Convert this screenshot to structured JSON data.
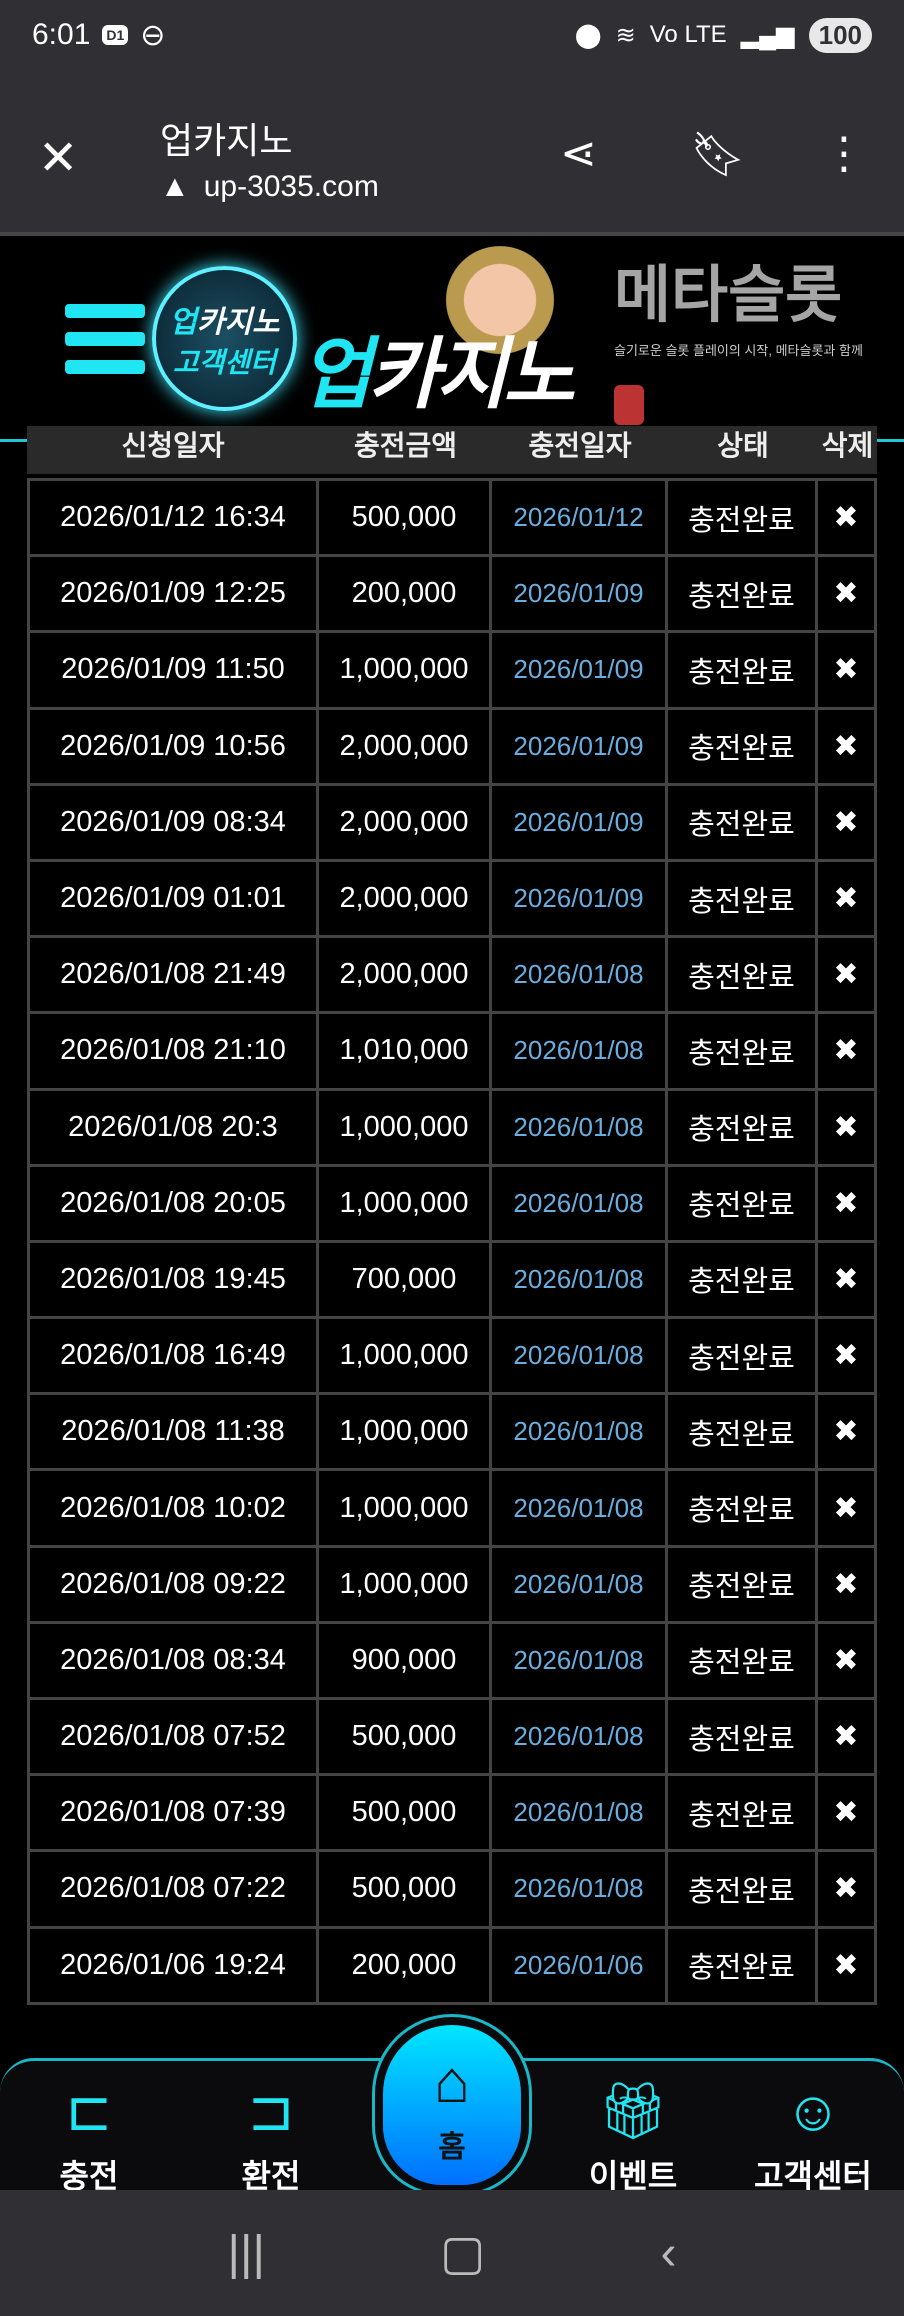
{
  "status_bar": {
    "time": "6:01",
    "badge": "D1",
    "network": "Vo LTE",
    "battery": "100"
  },
  "browser": {
    "title": "업카지노",
    "url": "up-3035.com",
    "icons": [
      "close-icon",
      "warning-icon",
      "share-icon",
      "bookmark-icon",
      "more-icon"
    ]
  },
  "header": {
    "logo_text_accent": "업",
    "logo_text": "카지노"
  },
  "table": {
    "columns": [
      "신청일자",
      "충전금액",
      "충전일자",
      "상태",
      "삭제"
    ],
    "rows": [
      {
        "requested": "2026/01/12 16:34",
        "amount": "500,000",
        "charged": "2026/01/12",
        "status": "충전완료",
        "delete": "✖"
      },
      {
        "requested": "2026/01/09 12:25",
        "amount": "200,000",
        "charged": "2026/01/09",
        "status": "충전완료",
        "delete": "✖"
      },
      {
        "requested": "2026/01/09 11:50",
        "amount": "1,000,000",
        "charged": "2026/01/09",
        "status": "충전완료",
        "delete": "✖"
      },
      {
        "requested": "2026/01/09 10:56",
        "amount": "2,000,000",
        "charged": "2026/01/09",
        "status": "충전완료",
        "delete": "✖"
      },
      {
        "requested": "2026/01/09 08:34",
        "amount": "2,000,000",
        "charged": "2026/01/09",
        "status": "충전완료",
        "delete": "✖"
      },
      {
        "requested": "2026/01/09 01:01",
        "amount": "2,000,000",
        "charged": "2026/01/09",
        "status": "충전완료",
        "delete": "✖"
      },
      {
        "requested": "2026/01/08 21:49",
        "amount": "2,000,000",
        "charged": "2026/01/08",
        "status": "충전완료",
        "delete": "✖"
      },
      {
        "requested": "2026/01/08 21:10",
        "amount": "1,010,000",
        "charged": "2026/01/08",
        "status": "충전완료",
        "delete": "✖"
      },
      {
        "requested": "2026/01/08 20:3",
        "amount": "1,000,000",
        "charged": "2026/01/08",
        "status": "충전완료",
        "delete": "✖"
      },
      {
        "requested": "2026/01/08 20:05",
        "amount": "1,000,000",
        "charged": "2026/01/08",
        "status": "충전완료",
        "delete": "✖"
      },
      {
        "requested": "2026/01/08 19:45",
        "amount": "700,000",
        "charged": "2026/01/08",
        "status": "충전완료",
        "delete": "✖"
      },
      {
        "requested": "2026/01/08 16:49",
        "amount": "1,000,000",
        "charged": "2026/01/08",
        "status": "충전완료",
        "delete": "✖"
      },
      {
        "requested": "2026/01/08 11:38",
        "amount": "1,000,000",
        "charged": "2026/01/08",
        "status": "충전완료",
        "delete": "✖"
      },
      {
        "requested": "2026/01/08 10:02",
        "amount": "1,000,000",
        "charged": "2026/01/08",
        "status": "충전완료",
        "delete": "✖"
      },
      {
        "requested": "2026/01/08 09:22",
        "amount": "1,000,000",
        "charged": "2026/01/08",
        "status": "충전완료",
        "delete": "✖"
      },
      {
        "requested": "2026/01/08 08:34",
        "amount": "900,000",
        "charged": "2026/01/08",
        "status": "충전완료",
        "delete": "✖"
      },
      {
        "requested": "2026/01/08 07:52",
        "amount": "500,000",
        "charged": "2026/01/08",
        "status": "충전완료",
        "delete": "✖"
      },
      {
        "requested": "2026/01/08 07:39",
        "amount": "500,000",
        "charged": "2026/01/08",
        "status": "충전완료",
        "delete": "✖"
      },
      {
        "requested": "2026/01/08 07:22",
        "amount": "500,000",
        "charged": "2026/01/08",
        "status": "충전완료",
        "delete": "✖"
      },
      {
        "requested": "2026/01/06 19:24",
        "amount": "200,000",
        "charged": "2026/01/06",
        "status": "충전완료",
        "delete": "✖"
      }
    ]
  },
  "watermark": {
    "title": "메타슬롯",
    "tagline": "슬기로운 슬롯 플레이의 시작, 메타슬롯과 함께"
  },
  "support_button": {
    "line1_accent": "업",
    "line1": "카지노",
    "line2": "고객센터"
  },
  "bottom_nav": {
    "items": [
      "충전",
      "환전",
      "홈",
      "이벤트",
      "고객센터"
    ]
  },
  "colors": {
    "accent": "#1fe6f2",
    "date_blue": "#6aaee0",
    "bar_bg": "#303034"
  }
}
